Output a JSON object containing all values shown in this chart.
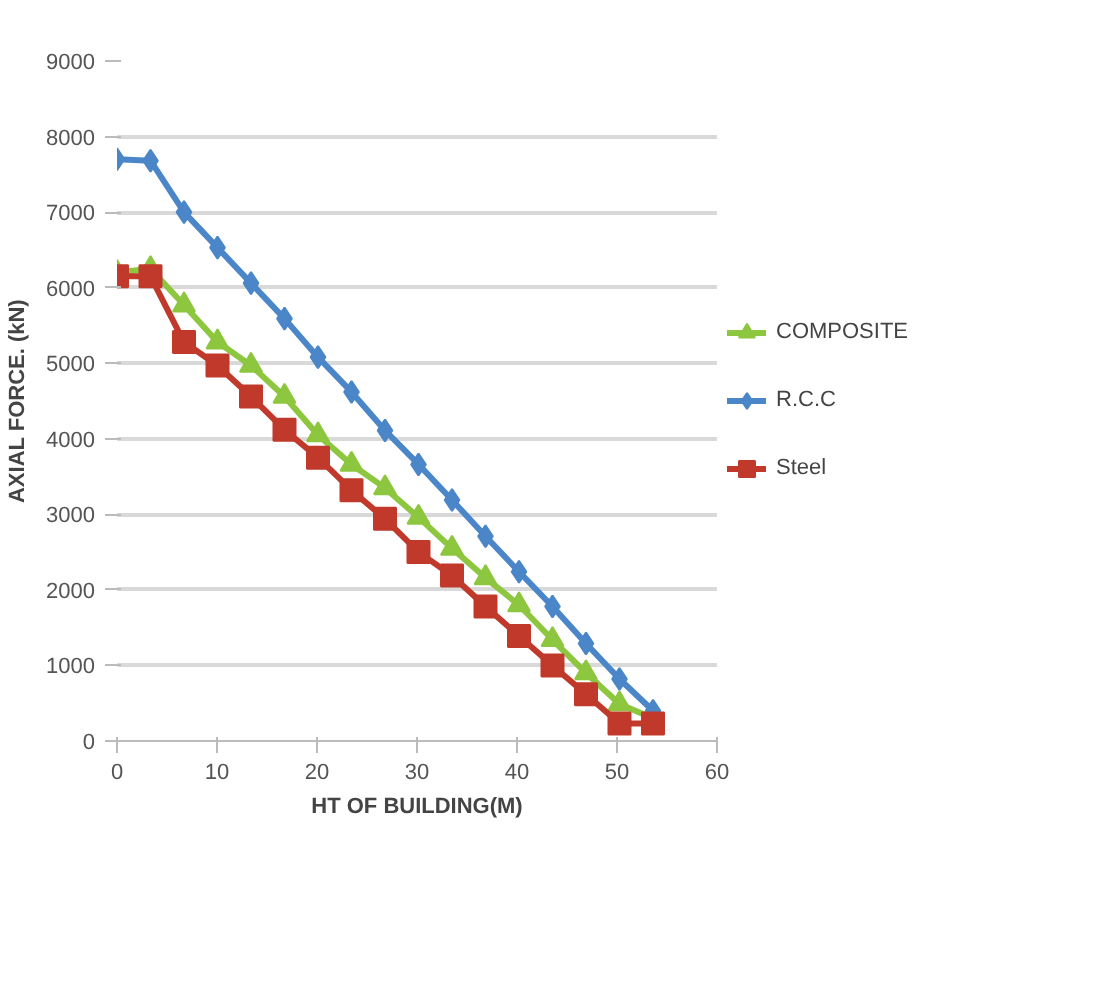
{
  "chart_data": {
    "type": "line",
    "xlabel": "HT OF BUILDING(M)",
    "ylabel": "AXIAL FORCE. (kN)",
    "x": [
      0,
      3.35,
      6.7,
      10.05,
      13.4,
      16.75,
      20.1,
      23.45,
      26.8,
      30.15,
      33.5,
      36.85,
      40.2,
      43.55,
      46.9,
      50.25,
      53.6
    ],
    "series": [
      {
        "name": "COMPOSITE",
        "color": "#8dc63f",
        "marker": "triangle",
        "values": [
          6200,
          6250,
          5770,
          5280,
          4970,
          4560,
          4050,
          3660,
          3350,
          2960,
          2550,
          2160,
          1800,
          1340,
          900,
          490,
          300
        ]
      },
      {
        "name": "R.C.C",
        "color": "#4a86c8",
        "marker": "diamond",
        "values": [
          7700,
          7680,
          7000,
          6530,
          6060,
          5590,
          5080,
          4620,
          4110,
          3660,
          3190,
          2710,
          2240,
          1780,
          1290,
          820,
          400
        ]
      },
      {
        "name": "Steel",
        "color": "#c0392b",
        "marker": "square",
        "values": [
          6150,
          6150,
          5280,
          4970,
          4560,
          4120,
          3750,
          3320,
          2940,
          2500,
          2190,
          1780,
          1390,
          1000,
          620,
          230,
          230
        ]
      }
    ],
    "xlim": [
      0,
      60
    ],
    "xticks": [
      0,
      10,
      20,
      30,
      40,
      50,
      60
    ],
    "ylim": [
      0,
      9000
    ],
    "yticks": [
      0,
      1000,
      2000,
      3000,
      4000,
      5000,
      6000,
      7000,
      8000,
      9000
    ],
    "grid": "y",
    "legend": "right"
  }
}
